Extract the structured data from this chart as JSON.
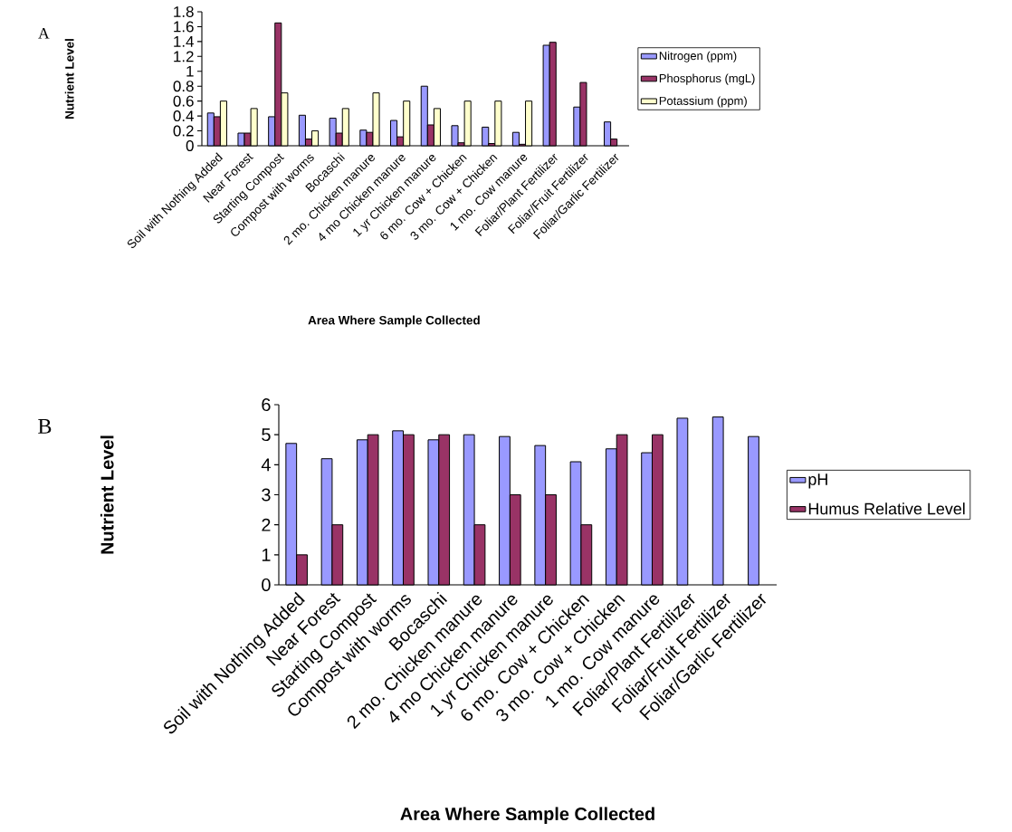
{
  "chart_data": [
    {
      "type": "bar",
      "ylabel": "Nutrient Level",
      "xlabel": "Area Where Sample Collected",
      "annotations": [
        "A"
      ],
      "legend": "right",
      "categories": [
        "Soil with Nothing Added",
        "Near Forest",
        "Starting Compost",
        "Compost with worms",
        "Bocaschi",
        "2 mo. Chicken manure",
        "4 mo Chicken manure",
        "1 yr Chicken manure",
        "6 mo. Cow + Chicken",
        "3 mo. Cow + Chicken",
        "1 mo. Cow manure",
        "Foliar/Plant Fertilizer",
        "Foliar/Fruit Fertilizer",
        "Foliar/Garlic Fertilizer"
      ],
      "series": [
        {
          "name": "Nitrogen (ppm)",
          "color": "#9999ff",
          "values": [
            0.44,
            0.17,
            0.39,
            0.41,
            0.37,
            0.21,
            0.34,
            0.8,
            0.27,
            0.25,
            0.18,
            1.35,
            0.52,
            0.32
          ]
        },
        {
          "name": "Phosphorus (mgL)",
          "color": "#993366",
          "values": [
            0.39,
            0.17,
            1.65,
            0.09,
            0.17,
            0.18,
            0.12,
            0.28,
            0.04,
            0.03,
            0.02,
            1.39,
            0.85,
            0.09
          ]
        },
        {
          "name": "Potassium (ppm)",
          "color": "#ffffcc",
          "values": [
            0.6,
            0.5,
            0.71,
            0.2,
            0.5,
            0.71,
            0.6,
            0.5,
            0.6,
            0.6,
            0.6,
            null,
            null,
            null
          ]
        }
      ],
      "ylim": [
        0,
        1.8
      ],
      "yticks": [
        0,
        0.2,
        0.4,
        0.6,
        0.8,
        1,
        1.2,
        1.4,
        1.6,
        1.8
      ]
    },
    {
      "type": "bar",
      "ylabel": "Nutrient Level",
      "xlabel": "Area Where Sample Collected",
      "annotations": [
        "B"
      ],
      "legend": "right",
      "categories": [
        "Soil with Nothing Added",
        "Near Forest",
        "Starting Compost",
        "Compost with worms",
        "Bocaschi",
        "2 mo. Chicken manure",
        "4 mo Chicken manure",
        "1 yr Chicken manure",
        "6 mo. Cow + Chicken",
        "3 mo. Cow + Chicken",
        "1 mo. Cow manure",
        "Foliar/Plant Fertilizer",
        "Foliar/Fruit Fertilizer",
        "Foliar/Garlic Fertilizer"
      ],
      "series": [
        {
          "name": "pH",
          "color": "#9999ff",
          "values": [
            4.71,
            4.2,
            4.83,
            5.13,
            4.83,
            5.0,
            4.94,
            4.64,
            4.1,
            4.53,
            4.4,
            5.55,
            5.59,
            4.94
          ]
        },
        {
          "name": "Humus Relative Level",
          "color": "#993366",
          "values": [
            1,
            2,
            5,
            5,
            5,
            2,
            3,
            3,
            2,
            5,
            5,
            null,
            null,
            null
          ]
        }
      ],
      "ylim": [
        0,
        6
      ],
      "yticks": [
        0,
        1,
        2,
        3,
        4,
        5,
        6
      ]
    }
  ]
}
